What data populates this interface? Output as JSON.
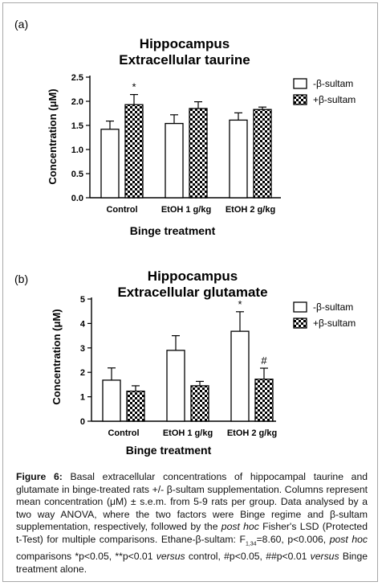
{
  "panels": [
    {
      "label": "(a)",
      "title_line1": "Hippocampus",
      "title_line2": "Extracellular taurine",
      "ylabel": "Concentration (μM)",
      "xlabel": "Binge treatment",
      "ylim": [
        0,
        2.5
      ],
      "yticks": [
        "0.0",
        "0.5",
        "1.0",
        "1.5",
        "2.0",
        "2.5"
      ],
      "ytick_values": [
        0,
        0.5,
        1.0,
        1.5,
        2.0,
        2.5
      ],
      "categories": [
        "Control",
        "EtOH 1 g/kg",
        "EtOH 2 g/kg"
      ],
      "legend": [
        "-β-sultam",
        "+β-sultam"
      ],
      "minus_values": [
        1.42,
        1.54,
        1.61
      ],
      "minus_err": [
        0.17,
        0.18,
        0.15
      ],
      "plus_values": [
        1.93,
        1.85,
        1.83
      ],
      "plus_err": [
        0.21,
        0.14,
        0.05
      ],
      "minus_marks": [
        "",
        "",
        ""
      ],
      "plus_marks": [
        "*",
        "",
        ""
      ]
    },
    {
      "label": "(b)",
      "title_line1": "Hippocampus",
      "title_line2": "Extracellular glutamate",
      "ylabel": "Concentration (μM)",
      "xlabel": "Binge treatment",
      "ylim": [
        0,
        5
      ],
      "yticks": [
        "0",
        "1",
        "2",
        "3",
        "4",
        "5"
      ],
      "ytick_values": [
        0,
        1,
        2,
        3,
        4,
        5
      ],
      "categories": [
        "Control",
        "EtOH 1 g/kg",
        "EtOH 2 g/kg"
      ],
      "legend": [
        "-β-sultam",
        "+β-sultam"
      ],
      "minus_values": [
        1.68,
        2.9,
        3.68
      ],
      "minus_err": [
        0.5,
        0.6,
        0.8
      ],
      "plus_values": [
        1.23,
        1.45,
        1.72
      ],
      "plus_err": [
        0.22,
        0.18,
        0.45
      ],
      "minus_marks": [
        "",
        "",
        "*"
      ],
      "plus_marks": [
        "",
        "",
        "#"
      ]
    }
  ],
  "caption": {
    "lead": "Figure 6:",
    "seg1": " Basal extracellular concentrations of hippocampal taurine and glutamate in binge-treated rats +/- β-sultam supplementation. Columns represent mean concentration (μM) ± s.e.m. from 5-9 rats per group. Data analysed by a two way ANOVA, where the two factors were Binge regime and β-sultam supplementation, respectively, followed by the ",
    "posthoc1": "post hoc",
    "seg2": " Fisher's LSD (Protected t-Test) for multiple comparisons. Ethane-β-sultam: F",
    "fsub": "1,34",
    "seg3": "=8.60, p<0.006, ",
    "posthoc2": "post hoc",
    "seg4": " comparisons *p<0.05, **p<0.01 ",
    "versus1": "versus",
    "seg5": " control, #p<0.05, ##p<0.01 ",
    "versus2": "versus",
    "seg6": " Binge treatment alone."
  },
  "chart_data": [
    {
      "type": "bar",
      "title": "Hippocampus Extracellular taurine",
      "xlabel": "Binge treatment",
      "ylabel": "Concentration (μM)",
      "ylim": [
        0,
        2.5
      ],
      "categories": [
        "Control",
        "EtOH 1 g/kg",
        "EtOH 2 g/kg"
      ],
      "series": [
        {
          "name": "-β-sultam",
          "values": [
            1.42,
            1.54,
            1.61
          ],
          "errors": [
            0.17,
            0.18,
            0.15
          ]
        },
        {
          "name": "+β-sultam",
          "values": [
            1.93,
            1.85,
            1.83
          ],
          "errors": [
            0.21,
            0.14,
            0.05
          ]
        }
      ],
      "annotations": [
        "*"
      ],
      "legend": "right"
    },
    {
      "type": "bar",
      "title": "Hippocampus Extracellular glutamate",
      "xlabel": "Binge treatment",
      "ylabel": "Concentration (μM)",
      "ylim": [
        0,
        5
      ],
      "categories": [
        "Control",
        "EtOH 1 g/kg",
        "EtOH 2 g/kg"
      ],
      "series": [
        {
          "name": "-β-sultam",
          "values": [
            1.68,
            2.9,
            3.68
          ],
          "errors": [
            0.5,
            0.6,
            0.8
          ]
        },
        {
          "name": "+β-sultam",
          "values": [
            1.23,
            1.45,
            1.72
          ],
          "errors": [
            0.22,
            0.18,
            0.45
          ]
        }
      ],
      "annotations": [
        "*",
        "#"
      ],
      "legend": "right"
    }
  ]
}
